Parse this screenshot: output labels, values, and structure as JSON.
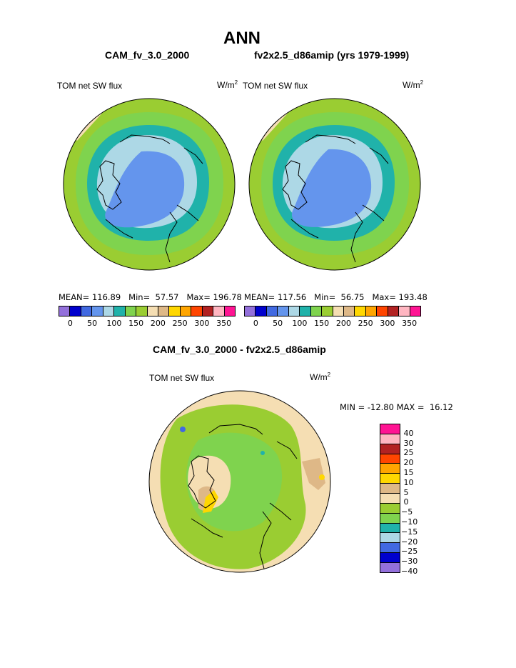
{
  "title": "ANN",
  "left_panel": {
    "case": "CAM_fv_3.0_2000",
    "variable": "TOM net SW flux",
    "units_base": "W/m",
    "units_exp": "2",
    "mean_label": "MEAN=",
    "mean_value": "116.89",
    "min_label": "Min=",
    "min_value": "57.57",
    "max_label": "Max=",
    "max_value": "196.78"
  },
  "right_panel": {
    "case": "fv2x2.5_d86amip (yrs 1979-1999)",
    "variable": "TOM net SW flux",
    "units_base": "W/m",
    "units_exp": "2",
    "mean_label": "MEAN=",
    "mean_value": "117.56",
    "min_label": "Min=",
    "min_value": "56.75",
    "max_label": "Max=",
    "max_value": "193.48"
  },
  "colorbar": {
    "colors": [
      "#9370db",
      "#0000cd",
      "#4169e1",
      "#6495ed",
      "#add8e6",
      "#20b2aa",
      "#7fd34e",
      "#9acd32",
      "#f5deb3",
      "#deb887",
      "#ffd700",
      "#ffa500",
      "#ff4500",
      "#b22222",
      "#ffb6c1",
      "#ff1493"
    ],
    "ticks": [
      "0",
      "50",
      "100",
      "150",
      "200",
      "250",
      "300",
      "350"
    ]
  },
  "diff_panel": {
    "title": "CAM_fv_3.0_2000 - fv2x2.5_d86amip",
    "variable": "TOM net SW flux",
    "units_base": "W/m",
    "units_exp": "2",
    "minmax_text": "MIN = -12.80 MAX =  16.12",
    "colors": [
      "#ff1493",
      "#ffb6c1",
      "#b22222",
      "#ff4500",
      "#ffa500",
      "#ffd700",
      "#deb887",
      "#f5deb3",
      "#9acd32",
      "#7fd34e",
      "#20b2aa",
      "#add8e6",
      "#4169e1",
      "#0000cd",
      "#9370db"
    ],
    "ticks": [
      "40",
      "30",
      "25",
      "20",
      "15",
      "10",
      "5",
      "0",
      "-5",
      "-10",
      "-15",
      "-20",
      "-25",
      "-30",
      "-40"
    ]
  }
}
